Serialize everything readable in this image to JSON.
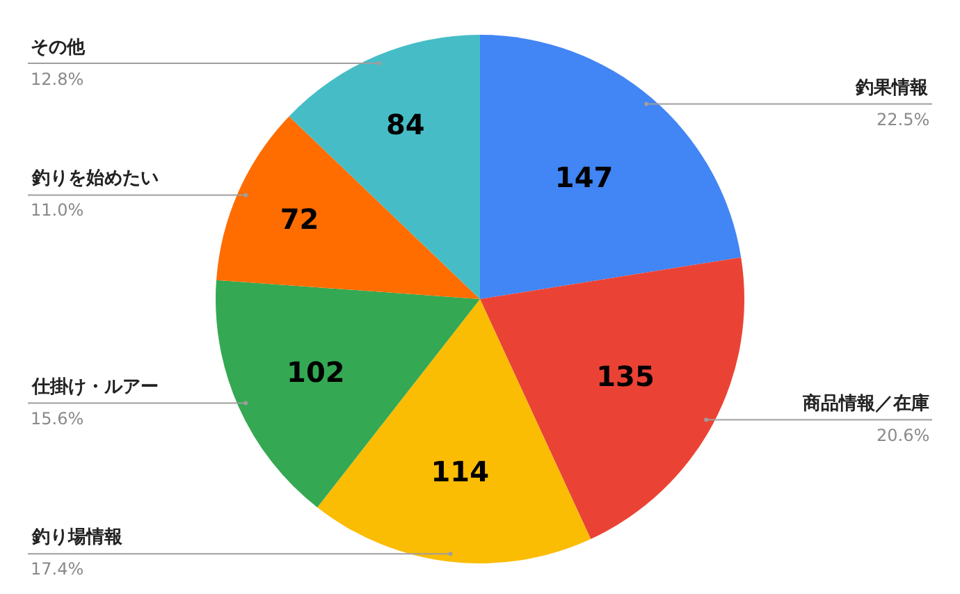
{
  "chart_data": {
    "type": "pie",
    "categories": [
      "釣果情報",
      "商品情報／在庫",
      "釣り場情報",
      "仕掛け・ルアー",
      "釣りを始めたい",
      "その他"
    ],
    "values": [
      147,
      135,
      114,
      102,
      72,
      84
    ],
    "colors": [
      "#4285f4",
      "#ea4335",
      "#fbbc04",
      "#34a853",
      "#ff6d01",
      "#46bdc6"
    ],
    "annotations": [
      "22.5%",
      "20.6%",
      "17.4%",
      "15.6%",
      "11.0%",
      "12.8%"
    ],
    "data_labels": true,
    "legend": false
  }
}
